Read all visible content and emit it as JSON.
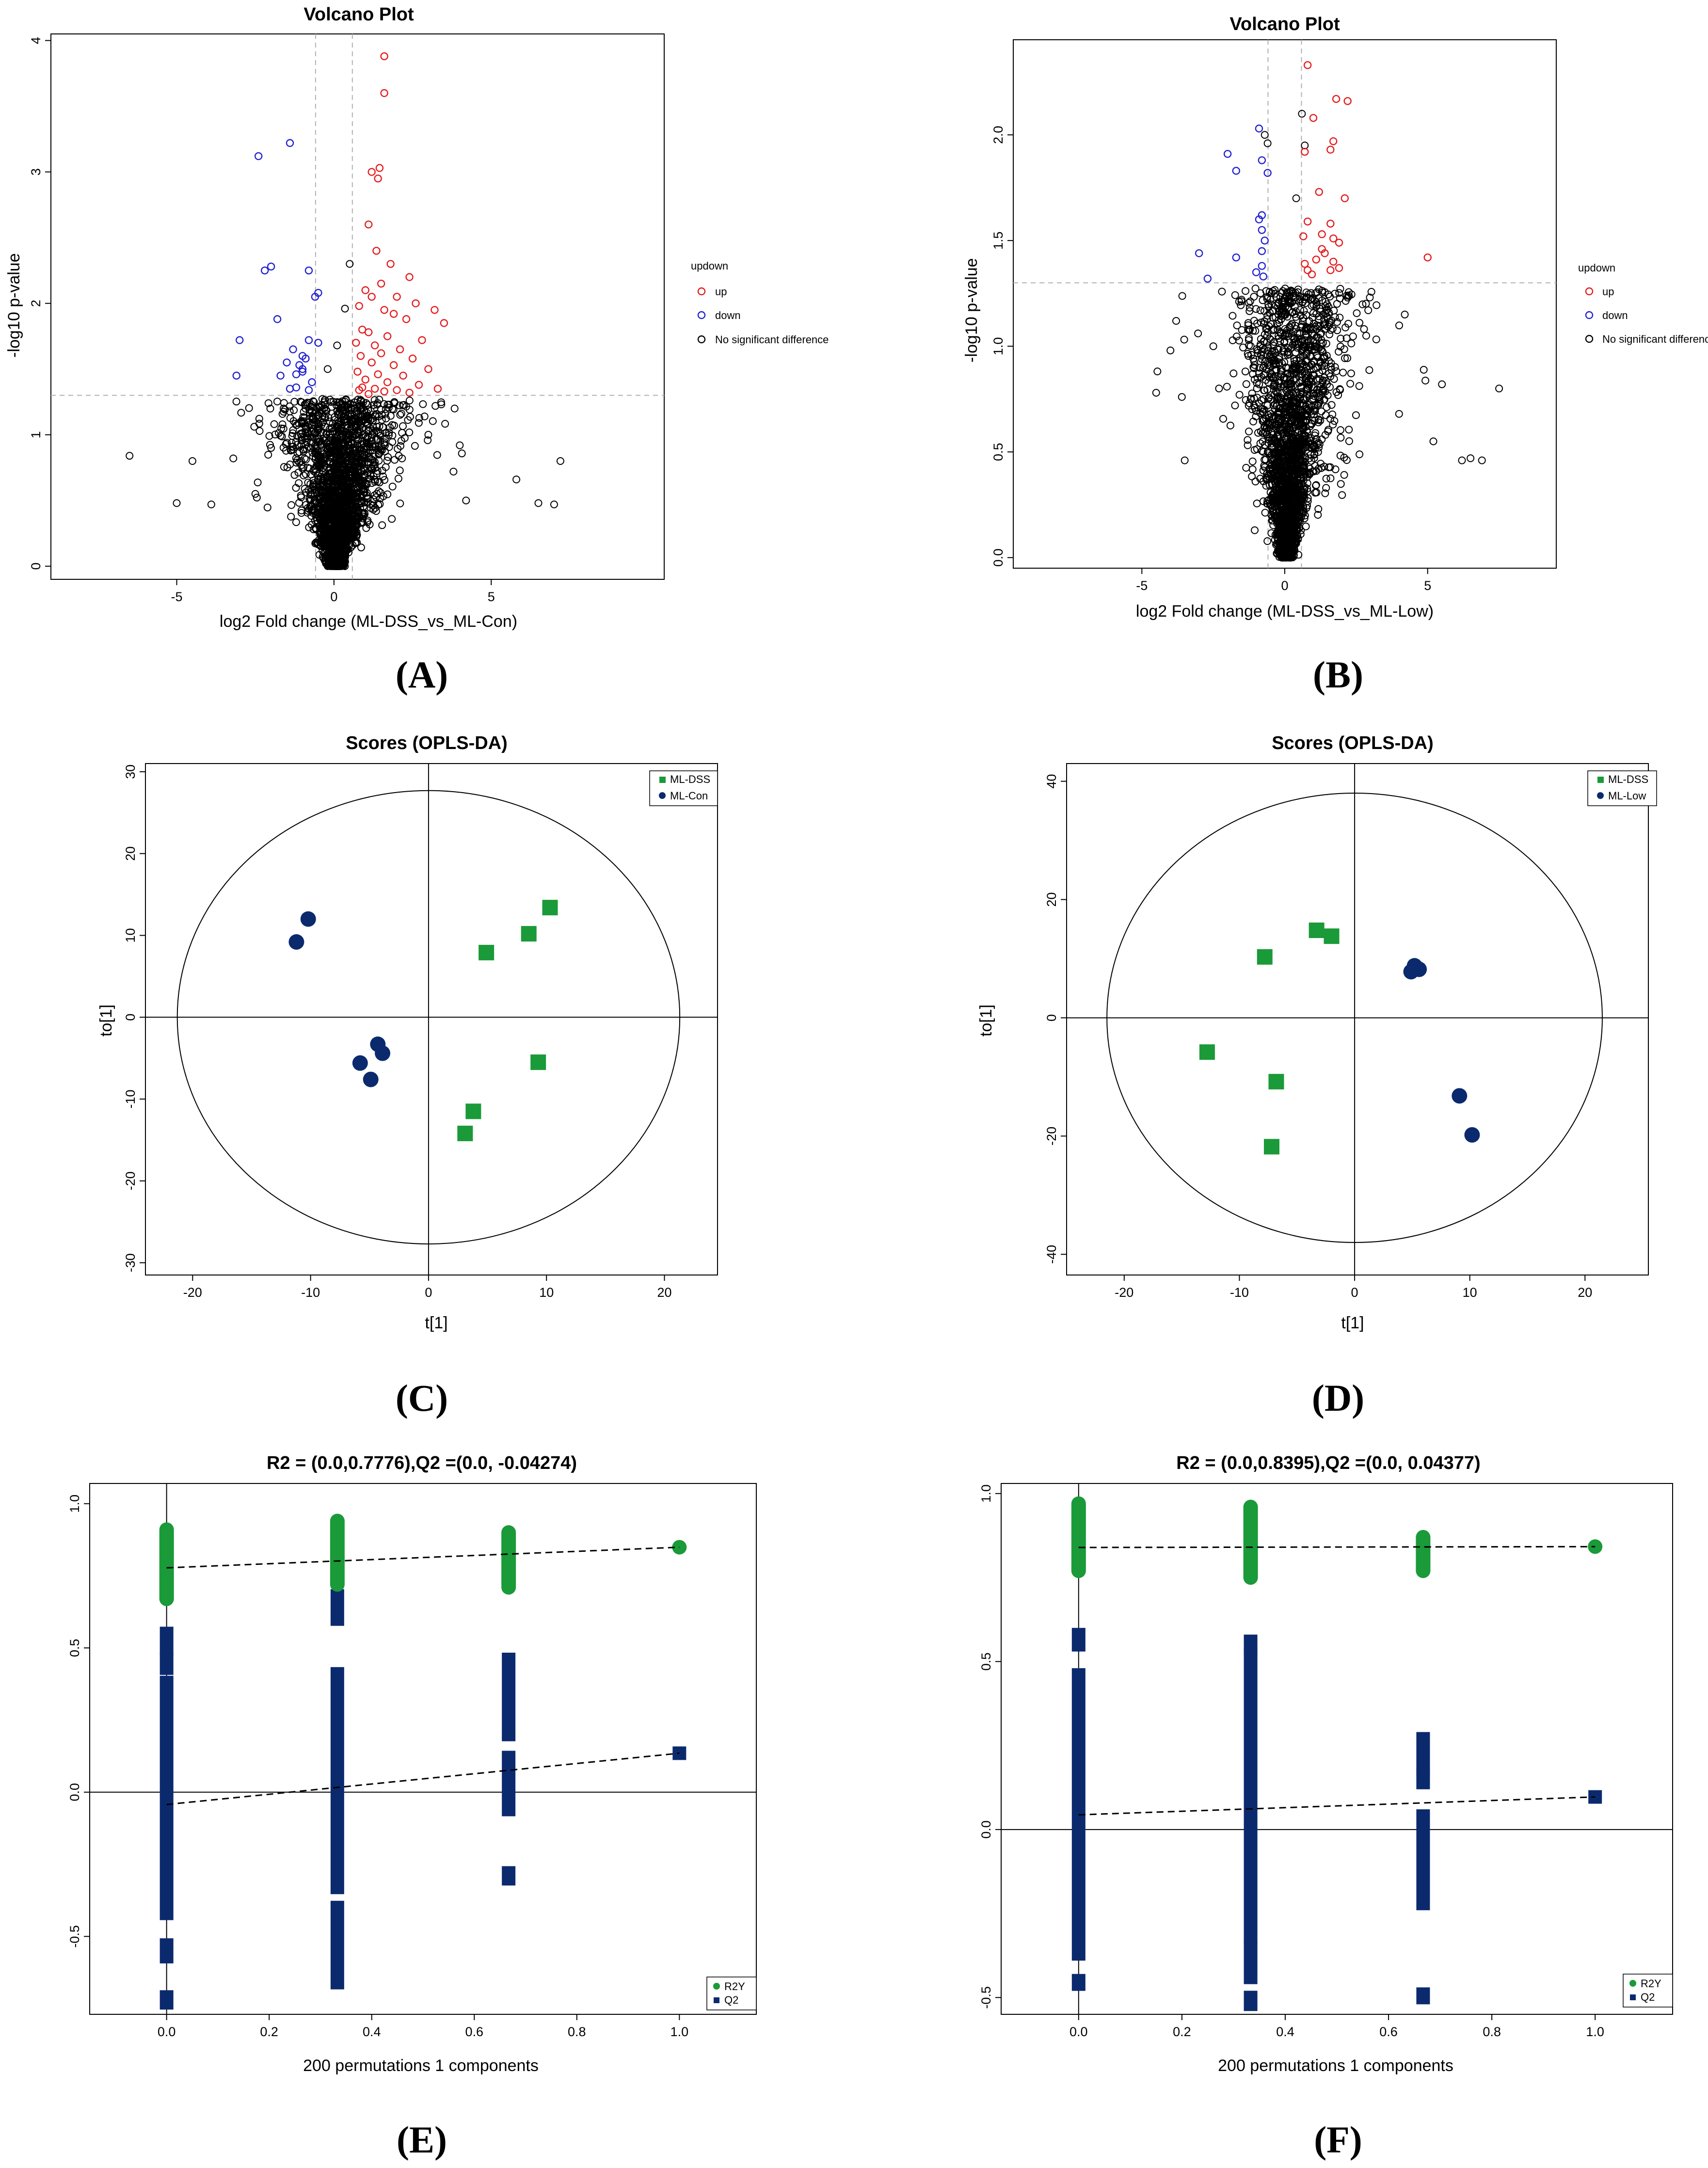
{
  "figure": {
    "captions": [
      "(A)",
      "(B)",
      "(C)",
      "(D)",
      "(E)",
      "(F)"
    ]
  },
  "colors": {
    "up": "#e41a1c",
    "down": "#2020d0",
    "ns": "#000000",
    "green": "#1a9a38",
    "navy": "#0b2a6e"
  },
  "chart_data": [
    {
      "id": "A",
      "type": "scatter",
      "subtype": "volcano",
      "title": "Volcano Plot",
      "xlabel": "log2 Fold change (ML-DSS_vs_ML-Con)",
      "ylabel": "-log10 p-value",
      "xlim": [
        -9,
        10.5
      ],
      "ylim": [
        -0.1,
        4.05
      ],
      "xticks": [
        -5,
        0,
        5
      ],
      "yticks": [
        0,
        1,
        2,
        3,
        4
      ],
      "fc_threshold": 0.585,
      "p_threshold": 1.3,
      "legend": {
        "title": "updown",
        "items": [
          {
            "key": "up",
            "label": "up"
          },
          {
            "key": "down",
            "label": "down"
          },
          {
            "key": "ns",
            "label": "No significant difference"
          }
        ]
      },
      "up_points": [
        [
          1.6,
          3.88
        ],
        [
          1.6,
          3.6
        ],
        [
          1.2,
          3.0
        ],
        [
          1.4,
          2.95
        ],
        [
          1.45,
          3.03
        ],
        [
          1.1,
          2.6
        ],
        [
          1.35,
          2.4
        ],
        [
          1.8,
          2.3
        ],
        [
          2.4,
          2.2
        ],
        [
          1.5,
          2.15
        ],
        [
          1.0,
          2.1
        ],
        [
          1.2,
          2.05
        ],
        [
          2.0,
          2.05
        ],
        [
          2.6,
          2.0
        ],
        [
          0.8,
          1.98
        ],
        [
          1.6,
          1.95
        ],
        [
          3.2,
          1.95
        ],
        [
          1.9,
          1.92
        ],
        [
          2.3,
          1.88
        ],
        [
          3.5,
          1.85
        ],
        [
          0.9,
          1.8
        ],
        [
          1.1,
          1.78
        ],
        [
          1.7,
          1.75
        ],
        [
          2.8,
          1.72
        ],
        [
          0.7,
          1.7
        ],
        [
          1.3,
          1.68
        ],
        [
          2.1,
          1.65
        ],
        [
          1.5,
          1.62
        ],
        [
          0.85,
          1.6
        ],
        [
          2.5,
          1.58
        ],
        [
          1.2,
          1.55
        ],
        [
          1.9,
          1.53
        ],
        [
          3.0,
          1.5
        ],
        [
          0.75,
          1.48
        ],
        [
          1.4,
          1.46
        ],
        [
          2.2,
          1.45
        ],
        [
          1.0,
          1.42
        ],
        [
          1.7,
          1.4
        ],
        [
          2.7,
          1.38
        ],
        [
          0.9,
          1.36
        ],
        [
          1.3,
          1.35
        ],
        [
          2.0,
          1.34
        ],
        [
          1.6,
          1.33
        ],
        [
          2.4,
          1.32
        ],
        [
          1.1,
          1.31
        ],
        [
          3.3,
          1.35
        ],
        [
          0.8,
          1.34
        ]
      ],
      "down_points": [
        [
          -1.4,
          3.22
        ],
        [
          -2.4,
          3.12
        ],
        [
          -2.0,
          2.28
        ],
        [
          -2.2,
          2.25
        ],
        [
          -0.8,
          2.25
        ],
        [
          -0.5,
          2.08
        ],
        [
          -0.6,
          2.05
        ],
        [
          -1.8,
          1.88
        ],
        [
          -3.0,
          1.72
        ],
        [
          -0.8,
          1.72
        ],
        [
          -0.5,
          1.7
        ],
        [
          -1.3,
          1.65
        ],
        [
          -1.0,
          1.6
        ],
        [
          -0.9,
          1.58
        ],
        [
          -1.5,
          1.55
        ],
        [
          -1.1,
          1.53
        ],
        [
          -1.0,
          1.5
        ],
        [
          -1.0,
          1.48
        ],
        [
          -1.2,
          1.46
        ],
        [
          -1.7,
          1.45
        ],
        [
          -3.1,
          1.45
        ],
        [
          -0.7,
          1.4
        ],
        [
          -1.2,
          1.36
        ],
        [
          -0.8,
          1.34
        ],
        [
          -1.4,
          1.35
        ]
      ],
      "ns_outliers": [
        [
          -6.5,
          0.84
        ],
        [
          -5.0,
          0.48
        ],
        [
          -4.5,
          0.8
        ],
        [
          -3.9,
          0.47
        ],
        [
          -3.2,
          0.82
        ],
        [
          -2.5,
          0.55
        ],
        [
          -2.0,
          0.9
        ],
        [
          -1.6,
          1.2
        ],
        [
          5.8,
          0.66
        ],
        [
          6.5,
          0.48
        ],
        [
          7.0,
          0.47
        ],
        [
          7.2,
          0.8
        ],
        [
          4.2,
          0.5
        ],
        [
          3.8,
          0.72
        ],
        [
          3.0,
          1.0
        ],
        [
          4.0,
          0.92
        ],
        [
          0.5,
          2.3
        ],
        [
          0.35,
          1.96
        ],
        [
          -0.2,
          1.5
        ],
        [
          0.1,
          1.68
        ]
      ],
      "ns_cloud_count": 2600
    },
    {
      "id": "B",
      "type": "scatter",
      "subtype": "volcano",
      "title": "Volcano Plot",
      "xlabel": "log2 Fold change (ML-DSS_vs_ML-Low)",
      "ylabel": "-log10 p-value",
      "xlim": [
        -9.5,
        9.5
      ],
      "ylim": [
        -0.05,
        2.45
      ],
      "xticks": [
        -5,
        0,
        5
      ],
      "yticks": [
        "0.0",
        "0.5",
        "1.0",
        "1.5",
        "2.0"
      ],
      "fc_threshold": 0.585,
      "p_threshold": 1.3,
      "legend": {
        "title": "updown",
        "items": [
          {
            "key": "up",
            "label": "up"
          },
          {
            "key": "down",
            "label": "down"
          },
          {
            "key": "ns",
            "label": "No significant difference"
          }
        ]
      },
      "up_points": [
        [
          0.8,
          2.33
        ],
        [
          1.8,
          2.17
        ],
        [
          2.2,
          2.16
        ],
        [
          1.0,
          2.08
        ],
        [
          1.7,
          1.97
        ],
        [
          0.7,
          1.92
        ],
        [
          1.6,
          1.93
        ],
        [
          1.2,
          1.73
        ],
        [
          2.1,
          1.7
        ],
        [
          0.8,
          1.59
        ],
        [
          1.6,
          1.58
        ],
        [
          0.65,
          1.52
        ],
        [
          1.3,
          1.53
        ],
        [
          1.7,
          1.51
        ],
        [
          1.9,
          1.49
        ],
        [
          5.0,
          1.42
        ],
        [
          1.3,
          1.46
        ],
        [
          0.7,
          1.39
        ],
        [
          1.4,
          1.44
        ],
        [
          1.1,
          1.41
        ],
        [
          1.7,
          1.4
        ],
        [
          0.8,
          1.36
        ],
        [
          1.6,
          1.36
        ],
        [
          1.9,
          1.37
        ],
        [
          0.95,
          1.34
        ]
      ],
      "down_points": [
        [
          -0.9,
          2.03
        ],
        [
          -2.0,
          1.91
        ],
        [
          -1.7,
          1.83
        ],
        [
          -0.8,
          1.88
        ],
        [
          -0.6,
          1.82
        ],
        [
          -0.8,
          1.62
        ],
        [
          -0.9,
          1.6
        ],
        [
          -0.8,
          1.55
        ],
        [
          -0.7,
          1.5
        ],
        [
          -3.0,
          1.44
        ],
        [
          -0.8,
          1.45
        ],
        [
          -1.7,
          1.42
        ],
        [
          -0.8,
          1.38
        ],
        [
          -2.7,
          1.32
        ],
        [
          -1.0,
          1.35
        ],
        [
          -0.75,
          1.33
        ]
      ],
      "ns_outliers": [
        [
          -4.5,
          0.78
        ],
        [
          -4.0,
          0.98
        ],
        [
          -3.8,
          1.12
        ],
        [
          -3.6,
          0.76
        ],
        [
          -2.5,
          1.0
        ],
        [
          -2.3,
          0.8
        ],
        [
          -3.5,
          0.46
        ],
        [
          5.5,
          0.82
        ],
        [
          7.5,
          0.8
        ],
        [
          6.9,
          0.46
        ],
        [
          6.5,
          0.47
        ],
        [
          6.2,
          0.46
        ],
        [
          5.2,
          0.55
        ],
        [
          4.2,
          1.15
        ],
        [
          4.0,
          0.68
        ],
        [
          -0.7,
          2.0
        ],
        [
          -0.6,
          1.96
        ],
        [
          0.7,
          1.95
        ],
        [
          0.6,
          2.1
        ],
        [
          0.4,
          1.7
        ]
      ],
      "ns_cloud_count": 2600
    },
    {
      "id": "C",
      "type": "scatter",
      "subtype": "opls-da scores",
      "title": "Scores (OPLS-DA)",
      "xlabel": "t[1]",
      "ylabel": "to[1]",
      "xlim": [
        -24,
        24.5
      ],
      "ylim": [
        -31.5,
        31
      ],
      "xticks": [
        -20,
        -10,
        0,
        10,
        20
      ],
      "yticks": [
        -30,
        -20,
        -10,
        0,
        10,
        20,
        30
      ],
      "ellipse": {
        "cx": 0,
        "cy": 0,
        "rx": 21.3,
        "ry": 27.7
      },
      "series": [
        {
          "name": "ML-DSS",
          "marker": "square",
          "color_key": "green",
          "points": [
            [
              10.3,
              13.4
            ],
            [
              8.5,
              10.2
            ],
            [
              4.9,
              7.9
            ],
            [
              9.3,
              -5.5
            ],
            [
              3.8,
              -11.5
            ],
            [
              3.1,
              -14.2
            ]
          ]
        },
        {
          "name": "ML-Con",
          "marker": "circle",
          "color_key": "navy",
          "points": [
            [
              -10.2,
              12.0
            ],
            [
              -11.2,
              9.2
            ],
            [
              -4.3,
              -3.3
            ],
            [
              -3.9,
              -4.4
            ],
            [
              -5.8,
              -5.6
            ],
            [
              -4.9,
              -7.6
            ]
          ]
        }
      ]
    },
    {
      "id": "D",
      "type": "scatter",
      "subtype": "opls-da scores",
      "title": "Scores (OPLS-DA)",
      "xlabel": "t[1]",
      "ylabel": "to[1]",
      "xlim": [
        -25,
        25.5
      ],
      "ylim": [
        -43.5,
        43
      ],
      "xticks": [
        -20,
        -10,
        0,
        10,
        20
      ],
      "yticks": [
        -40,
        -20,
        0,
        20,
        40
      ],
      "ellipse": {
        "cx": 0,
        "cy": 0,
        "rx": 21.5,
        "ry": 38.0
      },
      "series": [
        {
          "name": "ML-DSS",
          "marker": "square",
          "color_key": "green",
          "points": [
            [
              -3.3,
              14.8
            ],
            [
              -2.0,
              13.8
            ],
            [
              -7.8,
              10.3
            ],
            [
              -12.8,
              -5.8
            ],
            [
              -6.8,
              -10.8
            ],
            [
              -7.2,
              -21.8
            ]
          ]
        },
        {
          "name": "ML-Low",
          "marker": "circle",
          "color_key": "navy",
          "points": [
            [
              5.2,
              8.8
            ],
            [
              5.6,
              8.2
            ],
            [
              4.9,
              7.8
            ],
            [
              5.3,
              8.6
            ],
            [
              9.1,
              -13.2
            ],
            [
              10.2,
              -19.8
            ]
          ]
        }
      ]
    },
    {
      "id": "E",
      "type": "scatter",
      "subtype": "permutation test",
      "title": "R2 = (0.0,0.7776),Q2 =(0.0, -0.04274)",
      "xlabel": "200 permutations 1 components",
      "ylabel": "",
      "xlim": [
        -0.15,
        1.15
      ],
      "ylim": [
        -0.77,
        1.07
      ],
      "xticks": [
        "0.0",
        "0.2",
        "0.4",
        "0.6",
        "0.8",
        "1.0"
      ],
      "yticks": [
        "-0.5",
        "0.0",
        "0.5",
        "1.0"
      ],
      "r2_line": {
        "x": [
          0.0,
          1.0
        ],
        "y": [
          0.7776,
          0.849
        ]
      },
      "q2_line": {
        "x": [
          0.0,
          1.0
        ],
        "y": [
          -0.04274,
          0.135
        ]
      },
      "legend": [
        {
          "key": "R2Y",
          "label": "R2Y",
          "marker": "circle",
          "color_key": "green"
        },
        {
          "key": "Q2",
          "label": "Q2",
          "marker": "square",
          "color_key": "navy"
        }
      ],
      "r2y": [
        {
          "x": 0.0,
          "min": 0.67,
          "max": 0.91
        },
        {
          "x": 0.333,
          "min": 0.72,
          "max": 0.94
        },
        {
          "x": 0.667,
          "min": 0.71,
          "max": 0.9
        },
        {
          "x": 1.0,
          "min": 0.849,
          "max": 0.849
        }
      ],
      "q2": [
        {
          "x": 0.0,
          "segments": [
            [
              0.5,
              0.55
            ],
            [
              0.43,
              0.46
            ],
            [
              -0.42,
              0.38
            ],
            [
              -0.57,
              -0.53
            ],
            [
              -0.73,
              -0.71
            ]
          ]
        },
        {
          "x": 0.333,
          "segments": [
            [
              0.6,
              0.68
            ],
            [
              -0.33,
              0.41
            ],
            [
              -0.66,
              -0.4
            ]
          ]
        },
        {
          "x": 0.667,
          "segments": [
            [
              0.2,
              0.46
            ],
            [
              -0.06,
              0.12
            ],
            [
              -0.3,
              -0.28
            ]
          ]
        },
        {
          "x": 1.0,
          "segments": [
            [
              0.135,
              0.135
            ]
          ]
        }
      ]
    },
    {
      "id": "F",
      "type": "scatter",
      "subtype": "permutation test",
      "title": "R2 = (0.0,0.8395),Q2 =(0.0, 0.04377)",
      "xlabel": "200 permutations 1 components",
      "ylabel": "",
      "xlim": [
        -0.15,
        1.15
      ],
      "ylim": [
        -0.55,
        1.03
      ],
      "xticks": [
        "0.0",
        "0.2",
        "0.4",
        "0.6",
        "0.8",
        "1.0"
      ],
      "yticks": [
        "-0.5",
        "0.0",
        "0.5",
        "1.0"
      ],
      "r2_line": {
        "x": [
          0.0,
          1.0
        ],
        "y": [
          0.8395,
          0.842
        ]
      },
      "q2_line": {
        "x": [
          0.0,
          1.0
        ],
        "y": [
          0.04377,
          0.097
        ]
      },
      "legend": [
        {
          "key": "R2Y",
          "label": "R2Y",
          "marker": "circle",
          "color_key": "green"
        },
        {
          "key": "Q2",
          "label": "Q2",
          "marker": "square",
          "color_key": "navy"
        }
      ],
      "r2y": [
        {
          "x": 0.0,
          "min": 0.77,
          "max": 0.97
        },
        {
          "x": 0.333,
          "min": 0.75,
          "max": 0.96
        },
        {
          "x": 0.667,
          "min": 0.77,
          "max": 0.87
        },
        {
          "x": 1.0,
          "min": 0.842,
          "max": 0.842
        }
      ],
      "q2": [
        {
          "x": 0.0,
          "segments": [
            [
              0.55,
              0.58
            ],
            [
              -0.37,
              0.46
            ],
            [
              -0.46,
              -0.45
            ]
          ]
        },
        {
          "x": 0.333,
          "segments": [
            [
              0.54,
              0.56
            ],
            [
              -0.32,
              0.52
            ],
            [
              -0.44,
              -0.35
            ],
            [
              -0.52,
              -0.5
            ]
          ]
        },
        {
          "x": 0.667,
          "segments": [
            [
              0.18,
              0.27
            ],
            [
              0.14,
              0.16
            ],
            [
              -0.22,
              0.04
            ],
            [
              -0.5,
              -0.49
            ]
          ]
        },
        {
          "x": 1.0,
          "segments": [
            [
              0.097,
              0.097
            ]
          ]
        }
      ]
    }
  ]
}
